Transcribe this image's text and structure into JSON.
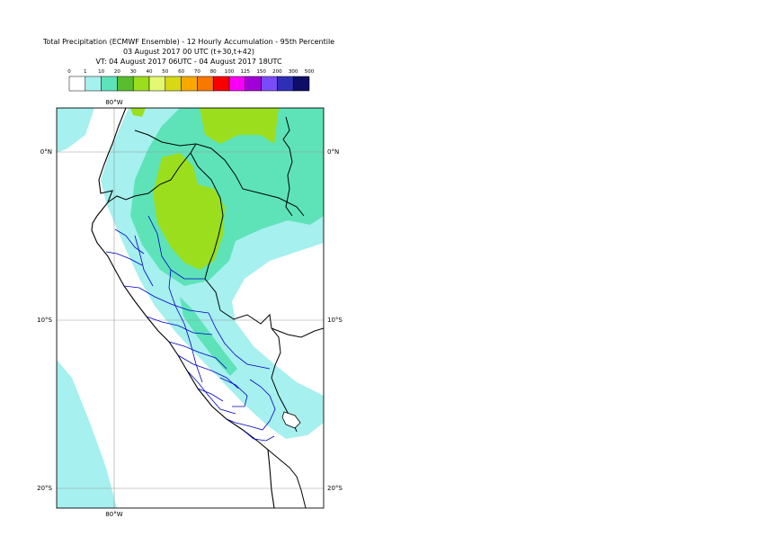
{
  "title": {
    "line1": "Total Precipitation (ECMWF Ensemble) - 12 Hourly Accumulation - 95th Percentile",
    "line2": "03 August 2017 00 UTC (t+30,t+42)",
    "line3": "VT: 04 August 2017 06UTC - 04 August 2017 18UTC"
  },
  "legend": {
    "ticks": [
      "0",
      "1",
      "10",
      "20",
      "30",
      "40",
      "50",
      "60",
      "70",
      "80",
      "100",
      "125",
      "150",
      "200",
      "300",
      "500"
    ],
    "colors": [
      "#ffffff",
      "#a6f0ef",
      "#5ee3b9",
      "#59bd2d",
      "#9ade1d",
      "#e4f871",
      "#d8d815",
      "#f8a800",
      "#f87800",
      "#f80000",
      "#f800f8",
      "#a200d9",
      "#7a4cf8",
      "#2f2fb5",
      "#0e0e66"
    ]
  },
  "map": {
    "lon_labels": {
      "top": "80°W",
      "bottom": "80°W"
    },
    "lat_labels": [
      "0°N",
      "10°S",
      "20°S"
    ],
    "land_colors": {
      "light": "#a6f0ef",
      "medium": "#5ee3b9",
      "heavy": "#9ade1d"
    }
  }
}
